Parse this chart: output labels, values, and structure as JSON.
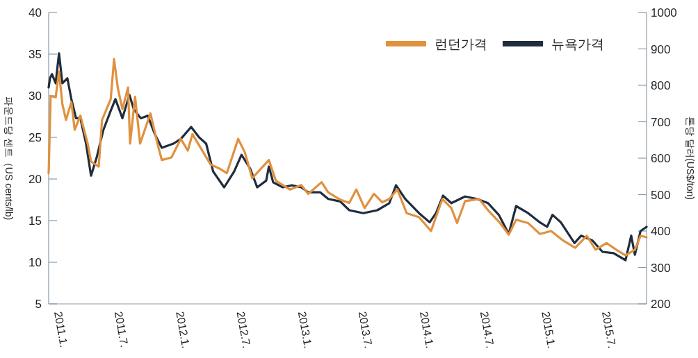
{
  "chart_data": {
    "type": "line",
    "ylabel": "파운드당 센트（US cents/lb)",
    "y2label": "톤당 달러(US$/ton)",
    "xlim": [
      "2010-12-07",
      "2015-11-03"
    ],
    "xticks": [
      {
        "value": "2011-01-01",
        "label": "2011.1."
      },
      {
        "value": "2011-07-01",
        "label": "2011.7."
      },
      {
        "value": "2012-01-01",
        "label": "2012.1."
      },
      {
        "value": "2012-07-01",
        "label": "2012.7."
      },
      {
        "value": "2013-01-01",
        "label": "2013.1."
      },
      {
        "value": "2013-07-01",
        "label": "2013.7."
      },
      {
        "value": "2014-01-01",
        "label": "2014.1."
      },
      {
        "value": "2014-07-01",
        "label": "2014.7."
      },
      {
        "value": "2015-01-01",
        "label": "2015.1."
      },
      {
        "value": "2015-07-01",
        "label": "2015.7."
      }
    ],
    "ylim": [
      5,
      40
    ],
    "yticks": [
      5,
      10,
      15,
      20,
      25,
      30,
      35,
      40
    ],
    "y2lim": [
      200,
      1000
    ],
    "y2ticks": [
      200,
      300,
      400,
      500,
      600,
      700,
      800,
      900,
      1000
    ],
    "legend": "top right",
    "series": [
      {
        "name": "런던가격",
        "color": "#e0913f",
        "axis": "y2",
        "x": [
          "2010-12-07",
          "2010-12-13",
          "2010-12-28",
          "2011-01-07",
          "2011-01-17",
          "2011-01-28",
          "2011-02-13",
          "2011-02-23",
          "2011-03-12",
          "2011-04-03",
          "2011-04-13",
          "2011-05-06",
          "2011-05-16",
          "2011-06-11",
          "2011-06-21",
          "2011-07-02",
          "2011-07-16",
          "2011-08-02",
          "2011-08-08",
          "2011-08-23",
          "2011-09-07",
          "2011-10-08",
          "2011-10-29",
          "2011-11-11",
          "2011-12-10",
          "2012-01-07",
          "2012-01-28",
          "2012-02-11",
          "2012-04-05",
          "2012-05-03",
          "2012-05-24",
          "2012-06-27",
          "2012-07-17",
          "2012-08-08",
          "2012-09-27",
          "2012-10-18",
          "2012-11-29",
          "2013-01-02",
          "2013-01-23",
          "2013-03-04",
          "2013-03-24",
          "2013-04-29",
          "2013-05-26",
          "2013-06-16",
          "2013-07-11",
          "2013-08-08",
          "2013-09-02",
          "2013-09-23",
          "2013-10-17",
          "2013-11-14",
          "2013-12-21",
          "2014-01-26",
          "2014-03-01",
          "2014-03-28",
          "2014-04-14",
          "2014-05-08",
          "2014-06-19",
          "2014-07-16",
          "2014-08-21",
          "2014-09-16",
          "2014-10-08",
          "2014-11-13",
          "2014-12-18",
          "2015-01-21",
          "2015-02-26",
          "2015-04-03",
          "2015-05-08",
          "2015-06-03",
          "2015-07-06",
          "2015-08-04",
          "2015-09-01",
          "2015-09-29",
          "2015-10-16",
          "2015-11-03"
        ],
        "values": [
          559,
          771,
          767,
          838,
          749,
          705,
          754,
          678,
          717,
          640,
          591,
          577,
          705,
          762,
          872,
          794,
          735,
          794,
          640,
          769,
          640,
          723,
          640,
          595,
          602,
          653,
          621,
          666,
          583,
          571,
          559,
          653,
          616,
          545,
          595,
          538,
          514,
          526,
          502,
          534,
          506,
          486,
          477,
          514,
          463,
          502,
          479,
          488,
          514,
          449,
          438,
          400,
          488,
          463,
          422,
          482,
          488,
          457,
          422,
          390,
          431,
          422,
          392,
          400,
          374,
          354,
          387,
          349,
          367,
          349,
          333,
          349,
          387,
          383
        ]
      },
      {
        "name": "뉴욕가격",
        "color": "#1f2d3d",
        "x": [
          "2010-12-07",
          "2010-12-11",
          "2010-12-17",
          "2010-12-28",
          "2011-01-07",
          "2011-01-17",
          "2011-02-01",
          "2011-02-13",
          "2011-02-27",
          "2011-03-12",
          "2011-03-29",
          "2011-04-13",
          "2011-04-30",
          "2011-05-20",
          "2011-06-11",
          "2011-06-25",
          "2011-07-16",
          "2011-08-06",
          "2011-08-19",
          "2011-09-09",
          "2011-09-30",
          "2011-10-21",
          "2011-11-11",
          "2011-12-16",
          "2012-01-07",
          "2012-02-07",
          "2012-03-02",
          "2012-03-23",
          "2012-04-13",
          "2012-05-16",
          "2012-06-15",
          "2012-07-07",
          "2012-08-02",
          "2012-08-23",
          "2012-09-19",
          "2012-09-27",
          "2012-10-10",
          "2012-11-08",
          "2012-12-05",
          "2013-01-02",
          "2013-01-23",
          "2013-02-28",
          "2013-03-24",
          "2013-04-29",
          "2013-05-26",
          "2013-07-07",
          "2013-08-18",
          "2013-09-23",
          "2013-10-13",
          "2013-11-10",
          "2013-12-21",
          "2014-01-22",
          "2014-02-10",
          "2014-03-03",
          "2014-03-28",
          "2014-05-08",
          "2014-06-13",
          "2014-07-16",
          "2014-08-17",
          "2014-09-16",
          "2014-10-08",
          "2014-11-13",
          "2014-12-18",
          "2015-01-09",
          "2015-01-25",
          "2015-02-19",
          "2015-04-01",
          "2015-04-21",
          "2015-05-25",
          "2015-06-24",
          "2015-07-27",
          "2015-09-01",
          "2015-09-18",
          "2015-09-29",
          "2015-10-16",
          "2015-11-03"
        ],
        "values": [
          31,
          32.1,
          32.6,
          31.5,
          35.1,
          31.5,
          32.1,
          29.6,
          27.3,
          27.3,
          24.25,
          20.4,
          22.6,
          25.9,
          28.2,
          29.6,
          27.3,
          30.1,
          28.4,
          27.3,
          27.6,
          25.4,
          23.75,
          24.25,
          24.8,
          26.25,
          25,
          24.25,
          20.9,
          19,
          20.9,
          22.9,
          21.25,
          19,
          19.8,
          21.5,
          19.6,
          19,
          19.25,
          19,
          18.4,
          18.4,
          17.6,
          17.3,
          16.25,
          15.9,
          16.25,
          17.1,
          19.25,
          17.6,
          15.9,
          14.8,
          15.9,
          18,
          17.1,
          17.9,
          17.6,
          17.1,
          15.7,
          13.4,
          16.75,
          15.9,
          14.8,
          14.25,
          15.7,
          14.8,
          12.3,
          13.2,
          12.6,
          11.25,
          11.1,
          10.25,
          13.2,
          10.9,
          13.75,
          14.25
        ]
      }
    ]
  }
}
